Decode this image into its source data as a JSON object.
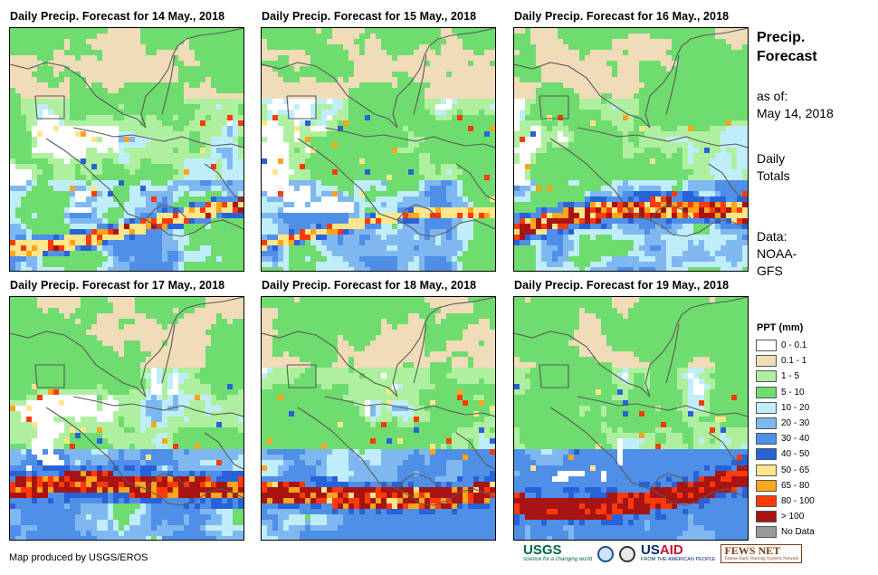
{
  "panels": [
    {
      "title": "Daily Precip. Forecast for 14 May., 2018",
      "seed": 14,
      "band_strength": 0.55,
      "band_red": 0.05,
      "sky": 0.25
    },
    {
      "title": "Daily Precip. Forecast for 15 May., 2018",
      "seed": 15,
      "band_strength": 0.35,
      "band_red": 0.0,
      "sky": 0.3
    },
    {
      "title": "Daily Precip. Forecast for 16 May., 2018",
      "seed": 16,
      "band_strength": 0.8,
      "band_red": 0.35,
      "sky": 0.35
    },
    {
      "title": "Daily Precip. Forecast for 17 May., 2018",
      "seed": 17,
      "band_strength": 0.95,
      "band_red": 0.55,
      "sky": 0.45
    },
    {
      "title": "Daily Precip. Forecast for 18 May., 2018",
      "seed": 18,
      "band_strength": 0.9,
      "band_red": 0.5,
      "sky": 0.6
    },
    {
      "title": "Daily Precip. Forecast for 19 May., 2018",
      "seed": 19,
      "band_strength": 1.0,
      "band_red": 0.75,
      "sky": 0.6
    }
  ],
  "side": {
    "title_line1": "Precip.",
    "title_line2": "Forecast",
    "asof_label": "as of:",
    "asof_date": "May 14, 2018",
    "totals_line1": "Daily",
    "totals_line2": "Totals",
    "data_line1": "Data:",
    "data_line2": "NOAA-",
    "data_line3": "GFS"
  },
  "legend": {
    "title": "PPT (mm)",
    "items": [
      {
        "label": "0 - 0.1",
        "color": "#ffffff"
      },
      {
        "label": "0.1 - 1",
        "color": "#f0dcb8"
      },
      {
        "label": "1 - 5",
        "color": "#aef0a0"
      },
      {
        "label": "5 - 10",
        "color": "#6fdc6f"
      },
      {
        "label": "10 - 20",
        "color": "#bfeefa"
      },
      {
        "label": "20 - 30",
        "color": "#7fb8f0"
      },
      {
        "label": "30 - 40",
        "color": "#4f8fe8"
      },
      {
        "label": "40 - 50",
        "color": "#2862d8"
      },
      {
        "label": "50 - 65",
        "color": "#ffe68a"
      },
      {
        "label": "65 - 80",
        "color": "#ffa51a"
      },
      {
        "label": "80 - 100",
        "color": "#ff3a0a"
      },
      {
        "label": "> 100",
        "color": "#a81414"
      },
      {
        "label": "No Data",
        "color": "#9a9a9a"
      }
    ]
  },
  "credit": "Map produced by USGS/EROS",
  "logos": {
    "usgs": "USGS",
    "usgs_tag": "science for a changing world",
    "usaid_a": "US",
    "usaid_b": "AID",
    "usaid_tag": "FROM THE AMERICAN PEOPLE",
    "fews": "FEWS NET",
    "fews_tag": "Famine Early Warning Systems Network"
  }
}
